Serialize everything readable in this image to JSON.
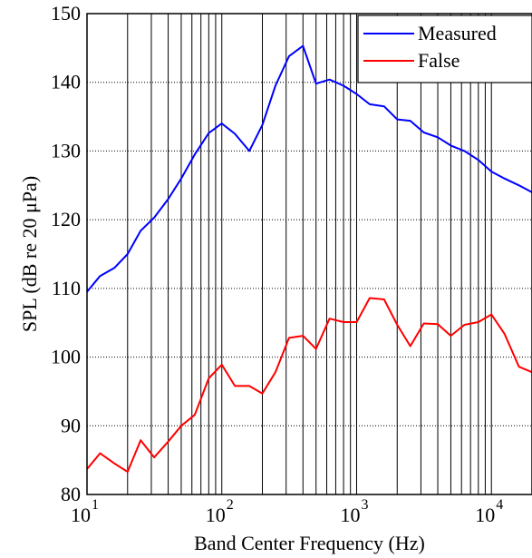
{
  "chart_data": {
    "type": "line",
    "title": "",
    "xlabel": "Band Center Frequency (Hz)",
    "ylabel": "SPL (dB re 20 μPa)",
    "xscale": "log",
    "xlim": [
      10,
      20000
    ],
    "ylim": [
      80,
      150
    ],
    "grid": "on (major and minor)",
    "legend_position": "top-right",
    "yticks": [
      80,
      90,
      100,
      110,
      120,
      130,
      140,
      150
    ],
    "ytick_labels": [
      "80",
      "90",
      "100",
      "110",
      "120",
      "130",
      "140",
      "150"
    ],
    "xticks": [
      10,
      100,
      1000,
      10000
    ],
    "xtick_labels": [
      {
        "base": "10",
        "exp": "1"
      },
      {
        "base": "10",
        "exp": "2"
      },
      {
        "base": "10",
        "exp": "3"
      },
      {
        "base": "10",
        "exp": "4"
      }
    ],
    "x": [
      10,
      12.5,
      16,
      20,
      25,
      31.5,
      40,
      50,
      63,
      80,
      100,
      125,
      160,
      200,
      250,
      315,
      400,
      500,
      630,
      800,
      1000,
      1250,
      1600,
      2000,
      2500,
      3150,
      4000,
      5000,
      6300,
      8000,
      10000,
      12500,
      16000,
      20000
    ],
    "series": [
      {
        "name": "Measured",
        "color": "#0000ff",
        "values": [
          109.5,
          111.8,
          113,
          115,
          118.4,
          120.3,
          123,
          126,
          129.5,
          132.6,
          134,
          132.5,
          130,
          133.8,
          139.5,
          143.8,
          145.3,
          139.8,
          140.4,
          139.5,
          138.3,
          136.8,
          136.5,
          134.6,
          134.4,
          132.7,
          132,
          130.8,
          130,
          128.7,
          127,
          126,
          125,
          124
        ]
      },
      {
        "name": "False",
        "color": "#ff0000",
        "values": [
          83.7,
          86,
          84.5,
          83.3,
          87.9,
          85.4,
          87.7,
          90,
          91.6,
          96.9,
          98.9,
          95.8,
          95.8,
          94.7,
          97.8,
          102.8,
          103.1,
          101.2,
          105.6,
          105.1,
          105.1,
          108.6,
          108.4,
          104.7,
          101.6,
          104.9,
          104.8,
          103.1,
          104.7,
          105.1,
          106.2,
          103.4,
          98.6,
          97.8
        ]
      }
    ]
  }
}
